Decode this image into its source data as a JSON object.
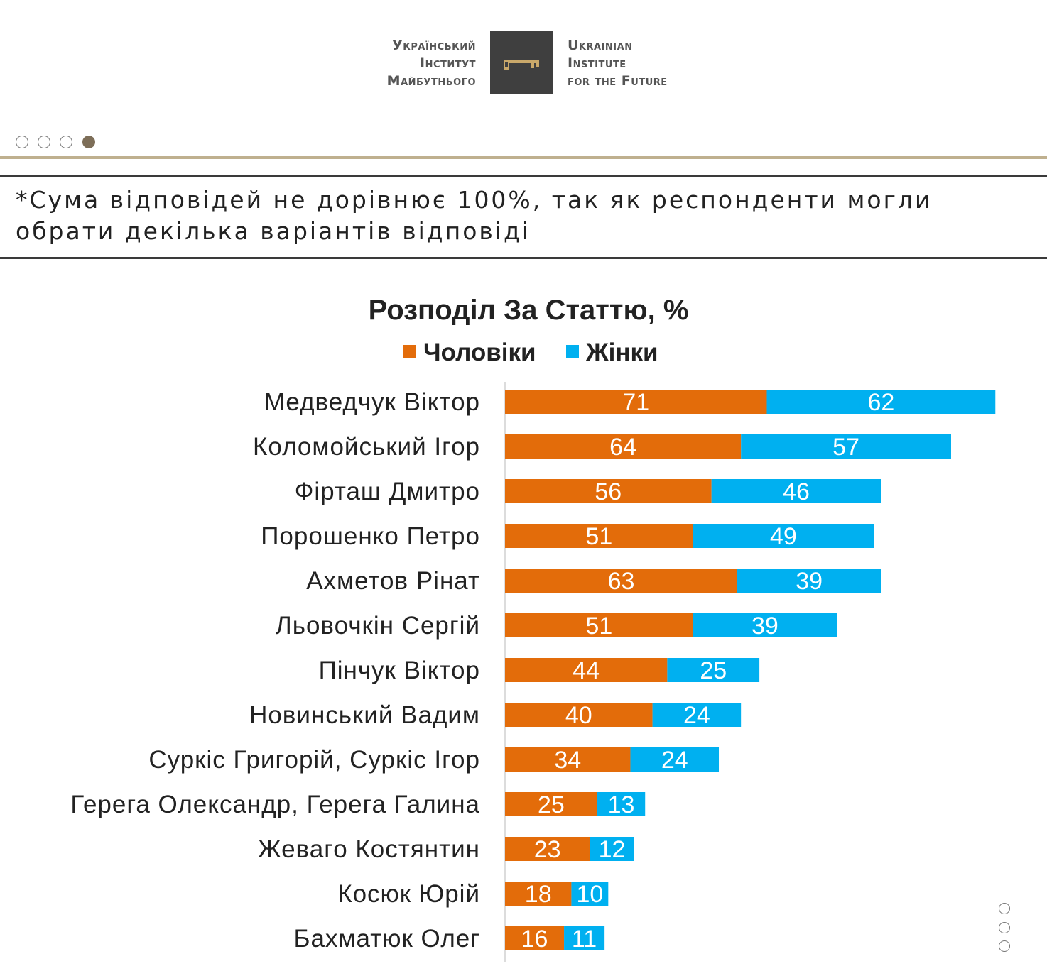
{
  "logo": {
    "ua_lines": [
      "Український",
      "Інститут",
      "Майбутнього"
    ],
    "en_lines": [
      "Ukrainian",
      "Institute",
      "for the Future"
    ]
  },
  "slides": {
    "count": 4,
    "active_index": 3
  },
  "note": "*Сума відповідей не дорівнює 100%, так як респонденти могли обрати декілька варіантів відповіді",
  "side_nav": {
    "count": 3
  },
  "colors": {
    "men": "#e36c0a",
    "women": "#00b0f0",
    "accent": "#bfb08f",
    "rule": "#3a3a3a"
  },
  "chart_data": {
    "type": "bar",
    "orientation": "horizontal",
    "stacked": true,
    "title": "Розподіл За Статтю, %",
    "legend_position": "top",
    "categories": [
      "Медведчук Віктор",
      "Коломойський Ігор",
      "Фірташ Дмитро",
      "Порошенко Петро",
      "Ахметов Рінат",
      "Льовочкін Сергій",
      "Пінчук Віктор",
      "Новинський Вадим",
      "Суркіс Григорій, Суркіс Ігор",
      "Герега Олександр, Герега Галина",
      "Жеваго Костянтин",
      "Косюк Юрій",
      "Бахматюк Олег"
    ],
    "series": [
      {
        "name": "Чоловіки",
        "color": "#e36c0a",
        "values": [
          71,
          64,
          56,
          51,
          63,
          51,
          44,
          40,
          34,
          25,
          23,
          18,
          16
        ]
      },
      {
        "name": "Жінки",
        "color": "#00b0f0",
        "values": [
          62,
          57,
          46,
          49,
          39,
          39,
          25,
          24,
          24,
          13,
          12,
          10,
          11
        ]
      }
    ],
    "xlim": [
      0,
      140
    ],
    "grid": false
  }
}
